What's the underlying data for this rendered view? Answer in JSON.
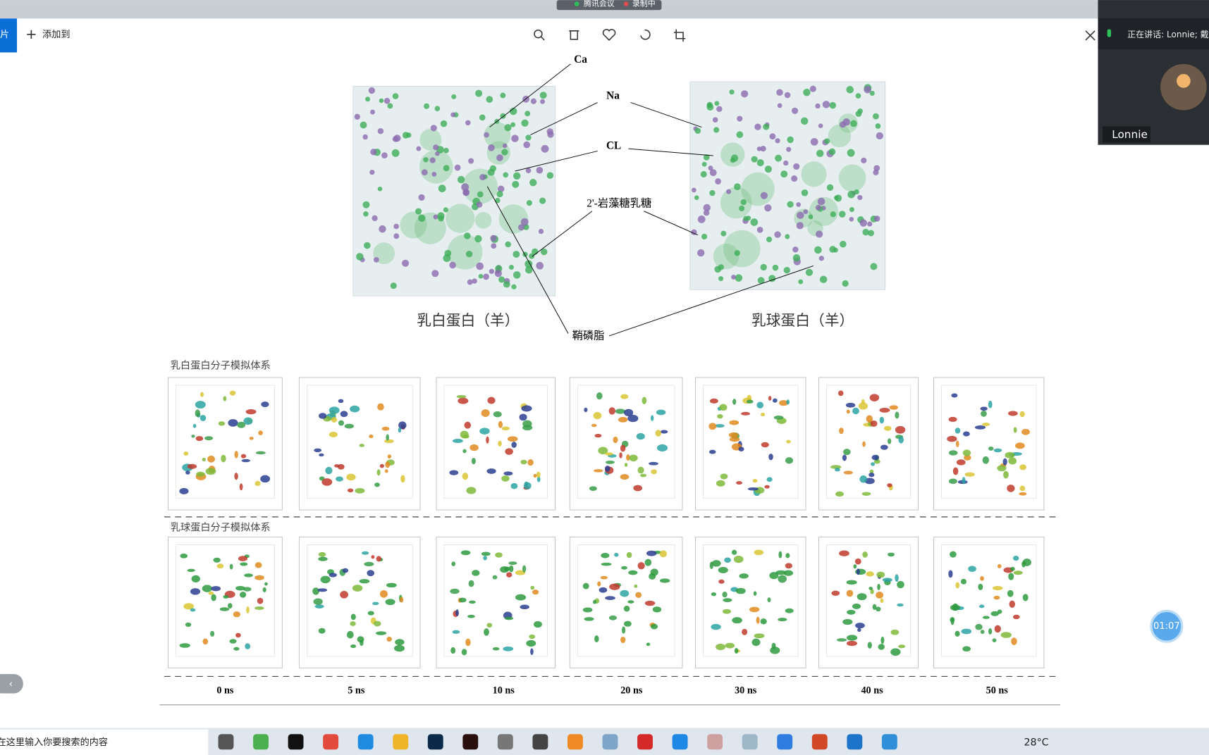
{
  "meeting": {
    "app": "腾讯会议",
    "recording": "录制中",
    "speaking": "正在讲话: Lonnie; 戴",
    "participant": "Lonnie",
    "timer": "01:07"
  },
  "toolbar": {
    "left_tab": "片",
    "add_to": "添加到"
  },
  "figure": {
    "labels": {
      "ca": "Ca",
      "na": "Na",
      "cl": "CL",
      "fucosyllactose": "2'-岩藻糖乳糖",
      "sphingomyelin": "鞘磷脂"
    },
    "cube_titles": [
      "乳白蛋白（羊）",
      "乳球蛋白（羊）"
    ],
    "row_titles": [
      "乳白蛋白分子模拟体系",
      "乳球蛋白分子模拟体系"
    ],
    "times": [
      "0 ns",
      "5 ns",
      "10 ns",
      "20 ns",
      "30 ns",
      "40 ns",
      "50 ns"
    ]
  },
  "taskbar": {
    "search": "在这里输入你要搜索的内容",
    "weather": "28°C"
  }
}
